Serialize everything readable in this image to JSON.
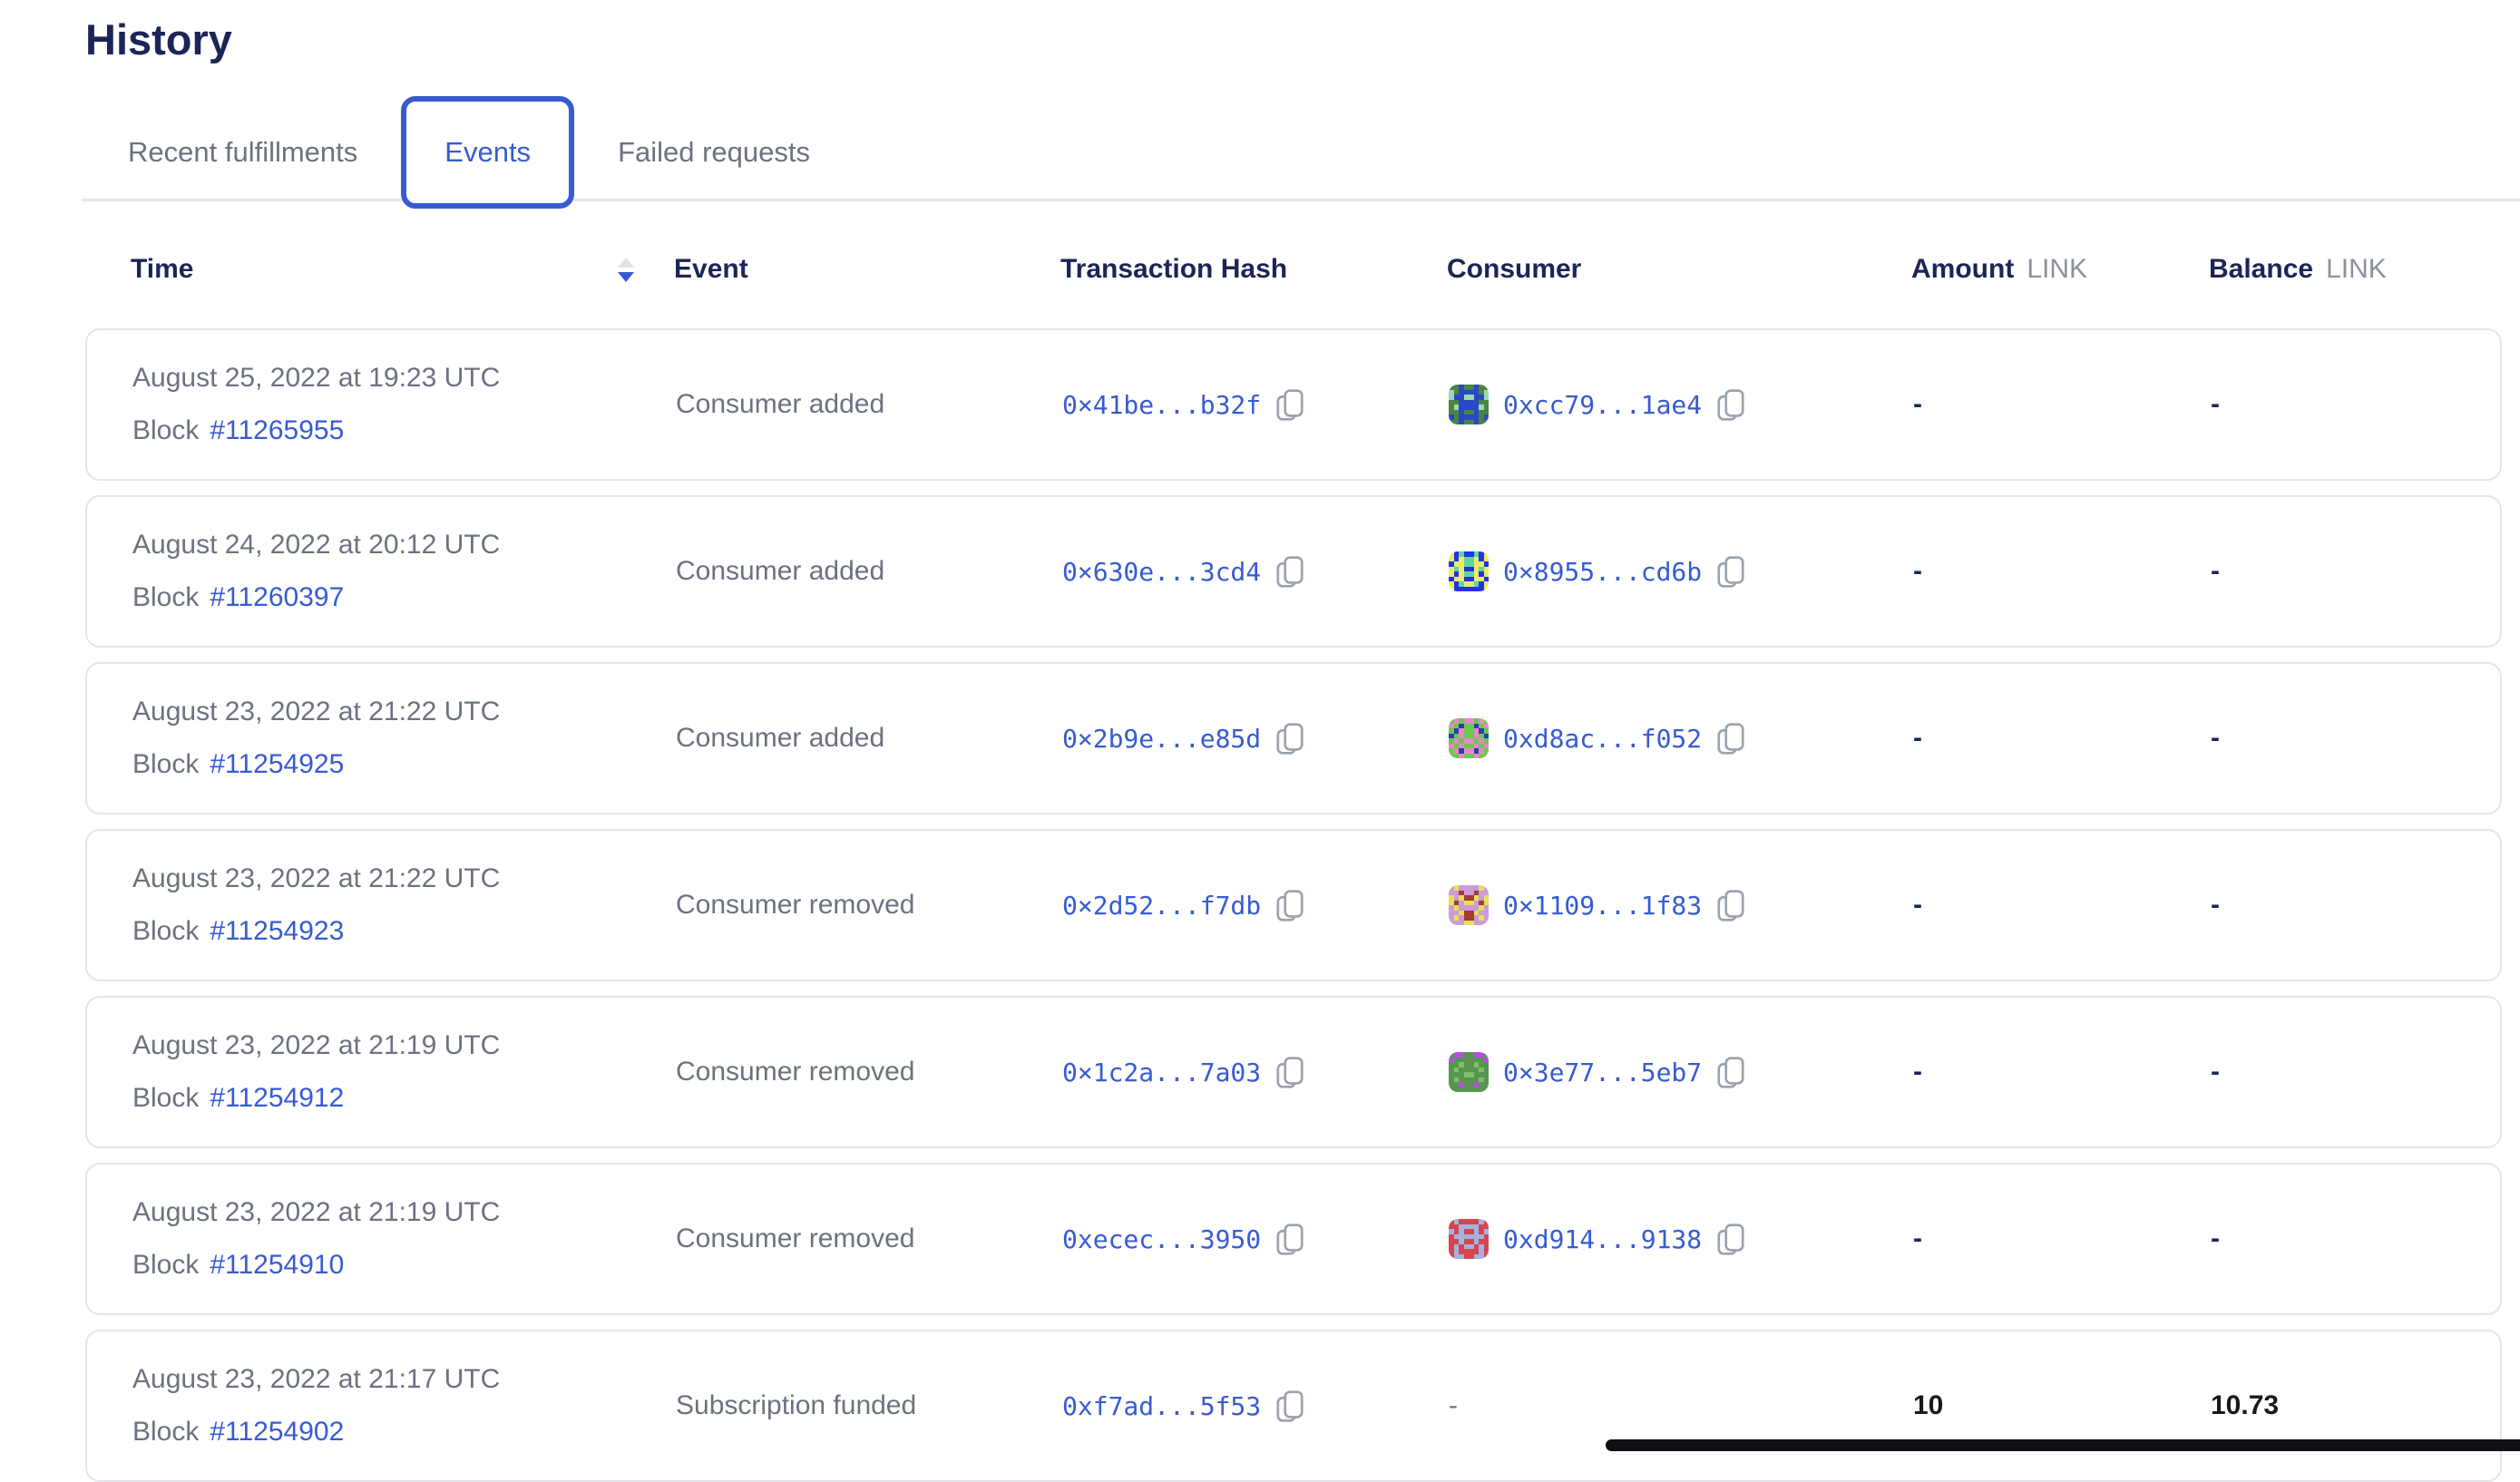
{
  "page": {
    "title": "History"
  },
  "tabs": [
    {
      "label": "Recent fulfillments",
      "active": false
    },
    {
      "label": "Events",
      "active": true
    },
    {
      "label": "Failed requests",
      "active": false
    }
  ],
  "table": {
    "columns": {
      "time": "Time",
      "event": "Event",
      "tx_hash": "Transaction Hash",
      "consumer": "Consumer",
      "amount": "Amount",
      "balance": "Balance",
      "link_unit": "LINK"
    },
    "sort": {
      "column": "time",
      "direction": "desc"
    },
    "rows": [
      {
        "time": "August 25, 2022 at 19:23 UTC",
        "block_label": "Block",
        "block_number": "#11265955",
        "event": "Consumer added",
        "tx_hash": "0×41be...b32f",
        "consumer_address": "0xcc79...1ae4",
        "amount": "-",
        "balance": "-",
        "avatar": {
          "colors": [
            "#4a8442",
            "#2c46c8",
            "#9ad9b1"
          ],
          "pattern": [
            "00100100",
            "20111102",
            "21122112",
            "00111100",
            "02111120",
            "00100100",
            "10111101",
            "00100100"
          ]
        }
      },
      {
        "time": "August 24, 2022 at 20:12 UTC",
        "block_label": "Block",
        "block_number": "#11260397",
        "event": "Consumer added",
        "tx_hash": "0×630e...3cd4",
        "consumer_address": "0×8955...cd6b",
        "amount": "-",
        "balance": "-",
        "avatar": {
          "colors": [
            "#2233e6",
            "#eaec6a",
            "#5fd6a2"
          ],
          "pattern": [
            "10200201",
            "10122101",
            "01122110",
            "12100121",
            "10122101",
            "01100110",
            "10211201",
            "10000001"
          ]
        }
      },
      {
        "time": "August 23, 2022 at 21:22 UTC",
        "block_label": "Block",
        "block_number": "#11254925",
        "event": "Consumer added",
        "tx_hash": "0×2b9e...e85d",
        "consumer_address": "0xd8ac...f052",
        "amount": "-",
        "balance": "-",
        "avatar": {
          "colors": [
            "#66cb4e",
            "#ec87c4",
            "#2a3fae"
          ],
          "pattern": [
            "01011010",
            "10200201",
            "02100120",
            "20100102",
            "01011010",
            "10100101",
            "01211210",
            "00100100"
          ]
        }
      },
      {
        "time": "August 23, 2022 at 21:22 UTC",
        "block_label": "Block",
        "block_number": "#11254923",
        "event": "Consumer removed",
        "tx_hash": "0×2d52...f7db",
        "consumer_address": "0×1109...1f83",
        "amount": "-",
        "balance": "-",
        "avatar": {
          "colors": [
            "#cd9bd7",
            "#e6df58",
            "#a43b35"
          ],
          "pattern": [
            "01000010",
            "00200200",
            "10122101",
            "12011021",
            "01000010",
            "00122100",
            "01022010",
            "00011000"
          ]
        }
      },
      {
        "time": "August 23, 2022 at 21:19 UTC",
        "block_label": "Block",
        "block_number": "#11254912",
        "event": "Consumer removed",
        "tx_hash": "0×1c2a...7a03",
        "consumer_address": "0×3e77...5eb7",
        "amount": "-",
        "balance": "-",
        "avatar": {
          "colors": [
            "#579550",
            "#b44fe0",
            "#7fbf6a"
          ],
          "pattern": [
            "01100110",
            "10000001",
            "00200200",
            "02000020",
            "00022000",
            "02000020",
            "00100100",
            "00000000"
          ]
        }
      },
      {
        "time": "August 23, 2022 at 21:19 UTC",
        "block_label": "Block",
        "block_number": "#11254910",
        "event": "Consumer removed",
        "tx_hash": "0xecec...3950",
        "consumer_address": "0xd914...9138",
        "amount": "-",
        "balance": "-",
        "avatar": {
          "colors": [
            "#d6454f",
            "#a3b2de",
            "#b5303c"
          ],
          "pattern": [
            "01000010",
            "00111100",
            "10100101",
            "01111110",
            "00100100",
            "01011010",
            "01000010",
            "01100110"
          ]
        }
      },
      {
        "time": "August 23, 2022 at 21:17 UTC",
        "block_label": "Block",
        "block_number": "#11254902",
        "event": "Subscription funded",
        "tx_hash": "0xf7ad...5f53",
        "consumer_address": "-",
        "amount": "10",
        "balance": "10.73",
        "avatar": null
      }
    ]
  },
  "colors": {
    "accent_blue": "#375bd2",
    "heading_navy": "#1c2557",
    "text_gray": "#6b7280",
    "link_unit_gray": "#8b919c",
    "icon_gray": "#9aa2ad",
    "card_border": "#e5e6ea"
  }
}
